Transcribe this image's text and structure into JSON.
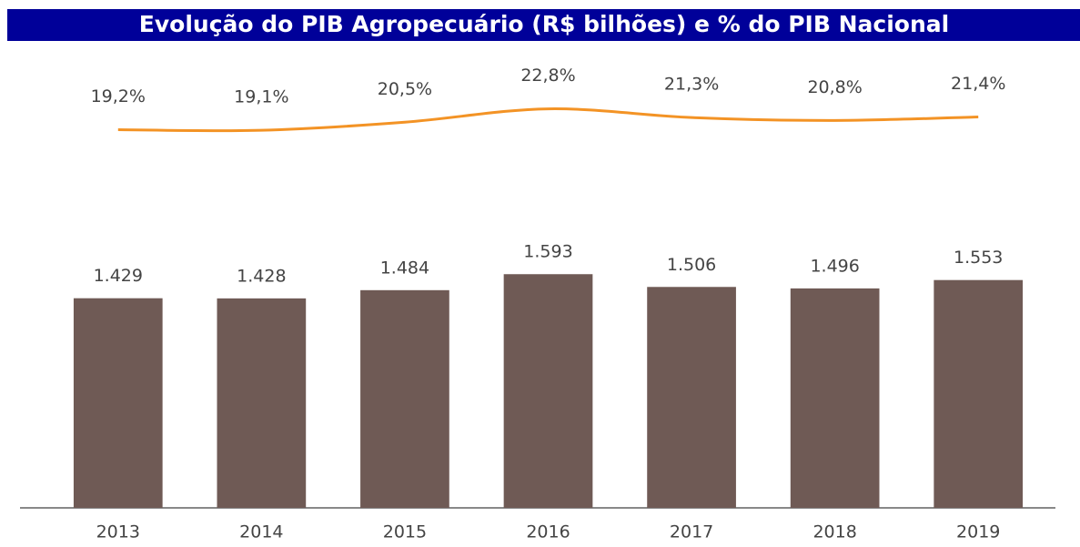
{
  "chart_data": {
    "type": "bar",
    "title": "Evolução do PIB Agropecuário (R$ bilhões) e % do PIB Nacional",
    "categories": [
      "2013",
      "2014",
      "2015",
      "2016",
      "2017",
      "2018",
      "2019"
    ],
    "series": [
      {
        "type": "bar",
        "color": "#6f5a55",
        "values": [
          1429,
          1428,
          1484,
          1593,
          1506,
          1496,
          1553
        ],
        "value_labels": [
          "1.429",
          "1.428",
          "1.484",
          "1.593",
          "1.506",
          "1.496",
          "1.553"
        ]
      },
      {
        "type": "line",
        "axis": "y2",
        "color": "#f39325",
        "values": [
          19.2,
          19.1,
          20.5,
          22.8,
          21.3,
          20.8,
          21.4
        ],
        "value_labels": [
          "19,2%",
          "19,1%",
          "20,5%",
          "22,8%",
          "21,3%",
          "20,8%",
          "21,4%"
        ]
      }
    ],
    "ylim": [
      0,
      3400
    ],
    "y2lim": [
      -46,
      40
    ]
  }
}
